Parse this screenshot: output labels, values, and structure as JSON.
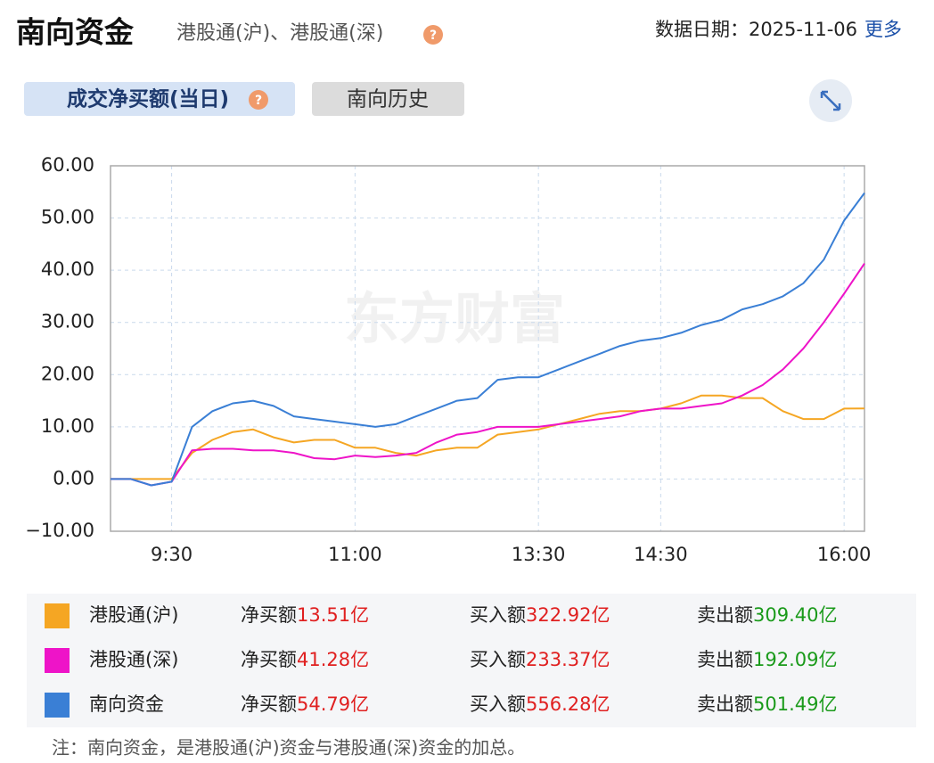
{
  "header": {
    "title": "南向资金",
    "subtitle": "港股通(沪)、港股通(深)",
    "date": "数据日期：2025-11-06",
    "more": "更多"
  },
  "tabs": [
    "成交净买额(当日)",
    "南向历史"
  ],
  "chart_data": {
    "type": "line",
    "watermark": "东方财富",
    "categories": [
      null,
      null,
      null,
      "9:30",
      null,
      null,
      null,
      null,
      null,
      null,
      null,
      null,
      "11:00",
      null,
      null,
      null,
      null,
      null,
      null,
      null,
      null,
      "13:30",
      null,
      null,
      null,
      null,
      null,
      "14:30",
      null,
      null,
      null,
      null,
      null,
      null,
      null,
      null,
      "16:00",
      null
    ],
    "ylim": [
      -10,
      60
    ],
    "yticks": [
      {
        "value": -10,
        "label": "−10.00"
      },
      {
        "value": 0,
        "label": "0.00"
      },
      {
        "value": 10,
        "label": "10.00"
      },
      {
        "value": 20,
        "label": "20.00"
      },
      {
        "value": 30,
        "label": "30.00"
      },
      {
        "value": 40,
        "label": "40.00"
      },
      {
        "value": 50,
        "label": "50.00"
      },
      {
        "value": 60,
        "label": "60.00"
      }
    ],
    "grid": true,
    "series": [
      {
        "name": "港股通(沪)",
        "color": "#f5a623",
        "values": [
          0,
          0,
          0,
          0,
          5,
          7.5,
          9,
          9.5,
          8,
          7,
          7.5,
          7.5,
          6,
          6,
          5,
          4.5,
          5.5,
          6,
          6,
          8.5,
          9,
          9.5,
          10.5,
          11.5,
          12.5,
          13,
          13,
          13.5,
          14.5,
          16,
          16,
          15.5,
          15.5,
          13,
          11.5,
          11.5,
          13.5,
          13.51
        ]
      },
      {
        "name": "港股通(深)",
        "color": "#ee14c8",
        "values": [
          0,
          0,
          -1.2,
          -0.5,
          5.5,
          5.8,
          5.8,
          5.5,
          5.5,
          5,
          4,
          3.8,
          4.5,
          4.2,
          4.5,
          5,
          7,
          8.5,
          9,
          10,
          10,
          10,
          10.5,
          11,
          11.5,
          12,
          13,
          13.5,
          13.5,
          14,
          14.5,
          16,
          18,
          21,
          25,
          30,
          35.5,
          41.28
        ]
      },
      {
        "name": "南向资金",
        "color": "#3a7fd5",
        "values": [
          0,
          0,
          -1.2,
          -0.5,
          10,
          13,
          14.5,
          15,
          14,
          12,
          11.5,
          11,
          10.5,
          10,
          10.5,
          12,
          13.5,
          15,
          15.5,
          19,
          19.5,
          19.5,
          21,
          22.5,
          24,
          25.5,
          26.5,
          27,
          28,
          29.5,
          30.5,
          32.5,
          33.5,
          35,
          37.5,
          42,
          49.5,
          54.79
        ]
      }
    ]
  },
  "summary": {
    "labels": [
      "净买额",
      "买入额",
      "卖出额"
    ],
    "rows": [
      [
        "13.51亿",
        "322.92亿",
        "309.40亿"
      ],
      [
        "41.28亿",
        "233.37亿",
        "192.09亿"
      ],
      [
        "54.79亿",
        "556.28亿",
        "501.49亿"
      ]
    ]
  },
  "note": "注：南向资金，是港股通(沪)资金与港股通(深)资金的加总。"
}
